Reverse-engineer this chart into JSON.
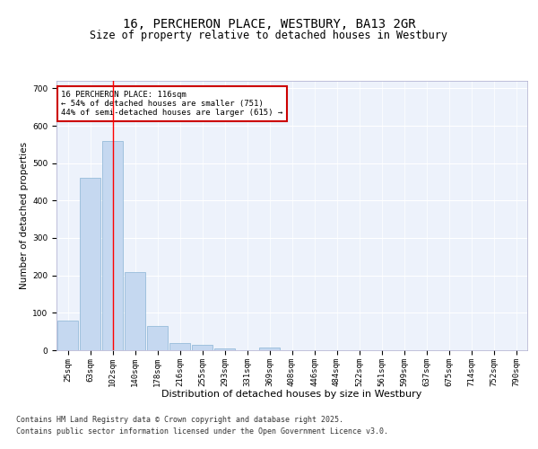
{
  "title": "16, PERCHERON PLACE, WESTBURY, BA13 2GR",
  "subtitle": "Size of property relative to detached houses in Westbury",
  "xlabel": "Distribution of detached houses by size in Westbury",
  "ylabel": "Number of detached properties",
  "categories": [
    "25sqm",
    "63sqm",
    "102sqm",
    "140sqm",
    "178sqm",
    "216sqm",
    "255sqm",
    "293sqm",
    "331sqm",
    "369sqm",
    "408sqm",
    "446sqm",
    "484sqm",
    "522sqm",
    "561sqm",
    "599sqm",
    "637sqm",
    "675sqm",
    "714sqm",
    "752sqm",
    "790sqm"
  ],
  "values": [
    80,
    460,
    560,
    210,
    65,
    20,
    15,
    5,
    0,
    8,
    0,
    0,
    0,
    0,
    0,
    0,
    0,
    0,
    0,
    0,
    0
  ],
  "bar_color": "#c5d8f0",
  "bar_edge_color": "#8ab4d4",
  "red_line_x": 2,
  "annotation_text": "16 PERCHERON PLACE: 116sqm\n← 54% of detached houses are smaller (751)\n44% of semi-detached houses are larger (615) →",
  "annotation_box_color": "#ffffff",
  "annotation_box_edge": "#cc0000",
  "ylim": [
    0,
    720
  ],
  "yticks": [
    0,
    100,
    200,
    300,
    400,
    500,
    600,
    700
  ],
  "background_color": "#edf2fb",
  "grid_color": "#ffffff",
  "footer_line1": "Contains HM Land Registry data © Crown copyright and database right 2025.",
  "footer_line2": "Contains public sector information licensed under the Open Government Licence v3.0.",
  "title_fontsize": 10,
  "subtitle_fontsize": 8.5,
  "ylabel_fontsize": 7.5,
  "xlabel_fontsize": 8,
  "tick_fontsize": 6.5,
  "annot_fontsize": 6.5,
  "footer_fontsize": 6
}
